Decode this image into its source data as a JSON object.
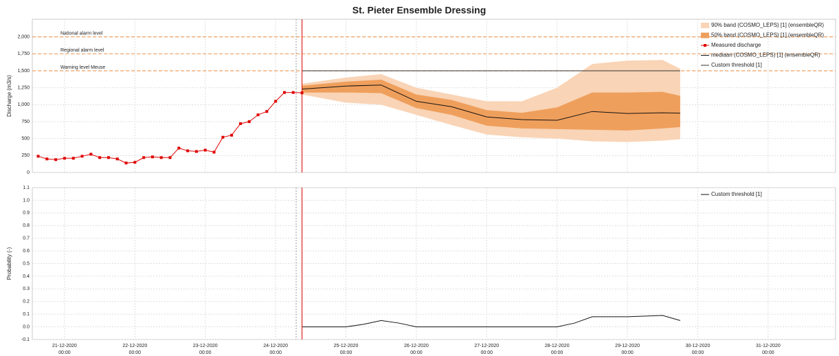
{
  "chart_data": [
    {
      "type": "line",
      "title": "St. Pieter Ensemble Dressing",
      "ylabel": "Discharge (m3/s)",
      "xlim": [
        "20-12-2020 13:00",
        "31-12-2020 23:00"
      ],
      "xticks": [
        "21-12-2020 00:00",
        "22-12-2020 00:00",
        "23-12-2020 00:00",
        "24-12-2020 00:00",
        "25-12-2020 00:00",
        "26-12-2020 00:00",
        "27-12-2020 00:00",
        "28-12-2020 00:00",
        "29-12-2020 00:00",
        "30-12-2020 00:00",
        "31-12-2020 00:00"
      ],
      "ylim": [
        0,
        2260
      ],
      "yticks": [
        0,
        250,
        500,
        750,
        {
          "value": 1000,
          "label": "1,000"
        },
        {
          "value": 1250,
          "label": "1,250"
        },
        {
          "value": 1500,
          "label": "1,500"
        },
        {
          "value": 1750,
          "label": "1,750"
        },
        {
          "value": 2000,
          "label": "2,000"
        }
      ],
      "grid": true,
      "levels": [
        {
          "name": "National alarm level",
          "value": 2000,
          "color": "#f0a060"
        },
        {
          "name": "Regional alarm level",
          "value": 1750,
          "color": "#f0a060"
        },
        {
          "name": "Warning level Meuse",
          "value": 1500,
          "color": "#f0a060"
        }
      ],
      "markers": [
        {
          "x": "24-12-2020 07:00",
          "color": "#9a9a9a"
        },
        {
          "x": "24-12-2020 09:00",
          "color": "#e00000"
        }
      ],
      "series": [
        {
          "name": "90% band (COSMO_LEPS) [1]  (ensembleQR)",
          "type": "band",
          "color": "#f9d4b6",
          "x": [
            "24-12-2020 09:00",
            "25-12-2020 00:00",
            "25-12-2020 12:00",
            "26-12-2020 00:00",
            "26-12-2020 12:00",
            "27-12-2020 00:00",
            "27-12-2020 12:00",
            "28-12-2020 00:00",
            "28-12-2020 12:00",
            "29-12-2020 00:00",
            "29-12-2020 12:00",
            "29-12-2020 18:00"
          ],
          "lower": [
            1150,
            1030,
            1000,
            850,
            700,
            560,
            520,
            500,
            460,
            450,
            470,
            490
          ],
          "upper": [
            1310,
            1400,
            1450,
            1250,
            1150,
            1050,
            1050,
            1250,
            1600,
            1650,
            1660,
            1530
          ]
        },
        {
          "name": "50% band (COSMO_LEPS) [1]  (ensembleQR)",
          "type": "band",
          "color": "#ef9f5c",
          "x": [
            "24-12-2020 09:00",
            "25-12-2020 00:00",
            "25-12-2020 12:00",
            "26-12-2020 00:00",
            "26-12-2020 12:00",
            "27-12-2020 00:00",
            "27-12-2020 12:00",
            "28-12-2020 00:00",
            "28-12-2020 12:00",
            "29-12-2020 00:00",
            "29-12-2020 12:00",
            "29-12-2020 18:00"
          ],
          "lower": [
            1180,
            1180,
            1170,
            950,
            850,
            690,
            650,
            640,
            630,
            620,
            650,
            670
          ],
          "upper": [
            1280,
            1340,
            1370,
            1150,
            1070,
            920,
            880,
            960,
            1180,
            1180,
            1190,
            1130
          ]
        },
        {
          "name": "Measured discharge",
          "type": "points",
          "color": "#e00000",
          "x": [
            "20-12-2020 15:00",
            "20-12-2020 18:00",
            "20-12-2020 21:00",
            "21-12-2020 00:00",
            "21-12-2020 03:00",
            "21-12-2020 06:00",
            "21-12-2020 09:00",
            "21-12-2020 12:00",
            "21-12-2020 15:00",
            "21-12-2020 18:00",
            "21-12-2020 21:00",
            "22-12-2020 00:00",
            "22-12-2020 03:00",
            "22-12-2020 06:00",
            "22-12-2020 09:00",
            "22-12-2020 12:00",
            "22-12-2020 15:00",
            "22-12-2020 18:00",
            "22-12-2020 21:00",
            "23-12-2020 00:00",
            "23-12-2020 03:00",
            "23-12-2020 06:00",
            "23-12-2020 09:00",
            "23-12-2020 12:00",
            "23-12-2020 15:00",
            "23-12-2020 18:00",
            "23-12-2020 21:00",
            "24-12-2020 00:00",
            "24-12-2020 03:00",
            "24-12-2020 06:00",
            "24-12-2020 09:00"
          ],
          "values": [
            240,
            200,
            190,
            210,
            210,
            240,
            270,
            220,
            220,
            200,
            140,
            150,
            220,
            230,
            220,
            220,
            360,
            320,
            310,
            330,
            300,
            520,
            550,
            720,
            750,
            850,
            900,
            1050,
            1180,
            1180,
            1175
          ]
        },
        {
          "name": "mediaan (COSMO_LEPS) [1]  (ensembleQR)",
          "type": "line",
          "color": "#111111",
          "x": [
            "24-12-2020 09:00",
            "25-12-2020 00:00",
            "25-12-2020 12:00",
            "26-12-2020 00:00",
            "26-12-2020 12:00",
            "27-12-2020 00:00",
            "27-12-2020 12:00",
            "28-12-2020 00:00",
            "28-12-2020 12:00",
            "29-12-2020 00:00",
            "29-12-2020 12:00",
            "29-12-2020 18:00"
          ],
          "values": [
            1230,
            1275,
            1290,
            1050,
            970,
            820,
            780,
            770,
            900,
            870,
            880,
            875
          ]
        },
        {
          "name": "Custom threshold [1]",
          "type": "line",
          "color": "#333333",
          "x": [
            "24-12-2020 09:00",
            "29-12-2020 18:00"
          ],
          "values": [
            1500,
            1500
          ]
        }
      ]
    },
    {
      "type": "line",
      "ylabel": "Probability (-)",
      "xlim": [
        "20-12-2020 13:00",
        "31-12-2020 23:00"
      ],
      "xticks": [
        {
          "value": "21-12-2020 00:00",
          "label": [
            "21-12-2020",
            "00:00"
          ]
        },
        {
          "value": "22-12-2020 00:00",
          "label": [
            "22-12-2020",
            "00:00"
          ]
        },
        {
          "value": "23-12-2020 00:00",
          "label": [
            "23-12-2020",
            "00:00"
          ]
        },
        {
          "value": "24-12-2020 00:00",
          "label": [
            "24-12-2020",
            "00:00"
          ]
        },
        {
          "value": "25-12-2020 00:00",
          "label": [
            "25-12-2020",
            "00:00"
          ]
        },
        {
          "value": "26-12-2020 00:00",
          "label": [
            "26-12-2020",
            "00:00"
          ]
        },
        {
          "value": "27-12-2020 00:00",
          "label": [
            "27-12-2020",
            "00:00"
          ]
        },
        {
          "value": "28-12-2020 00:00",
          "label": [
            "28-12-2020",
            "00:00"
          ]
        },
        {
          "value": "29-12-2020 00:00",
          "label": [
            "29-12-2020",
            "00:00"
          ]
        },
        {
          "value": "30-12-2020 00:00",
          "label": [
            "30-12-2020",
            "00:00"
          ]
        },
        {
          "value": "31-12-2020 00:00",
          "label": [
            "31-12-2020",
            "00:00"
          ]
        }
      ],
      "ylim": [
        -0.1,
        1.1
      ],
      "yticks": [
        -0.1,
        {
          "value": 0,
          "label": "0.0"
        },
        0.1,
        0.2,
        0.3,
        0.4,
        0.5,
        0.6,
        0.7,
        0.8,
        0.9,
        {
          "value": 1,
          "label": "1.0"
        },
        1.1
      ],
      "grid": true,
      "markers": [
        {
          "x": "24-12-2020 07:00",
          "color": "#9a9a9a"
        },
        {
          "x": "24-12-2020 09:00",
          "color": "#e00000"
        }
      ],
      "series": [
        {
          "name": "Custom threshold [1]",
          "type": "line",
          "color": "#111111",
          "x": [
            "24-12-2020 09:00",
            "25-12-2020 00:00",
            "25-12-2020 06:00",
            "25-12-2020 12:00",
            "25-12-2020 18:00",
            "26-12-2020 00:00",
            "27-12-2020 12:00",
            "28-12-2020 00:00",
            "28-12-2020 06:00",
            "28-12-2020 12:00",
            "29-12-2020 00:00",
            "29-12-2020 12:00",
            "29-12-2020 18:00"
          ],
          "values": [
            0,
            0,
            0.02,
            0.05,
            0.03,
            0,
            0,
            0,
            0.03,
            0.08,
            0.08,
            0.09,
            0.05
          ]
        }
      ]
    }
  ]
}
